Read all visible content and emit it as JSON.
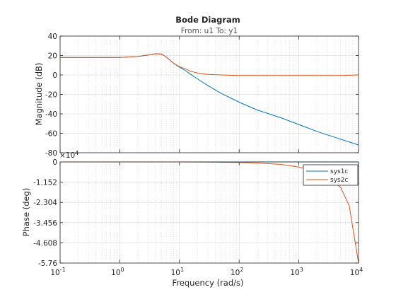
{
  "chart_data": {
    "type": "line",
    "title": "Bode Diagram",
    "subtitle": "From: u1  To: y1",
    "xlabel": "Frequency  (rad/s)",
    "x_scale": "log",
    "xlim": [
      0.1,
      10000
    ],
    "x_ticks": [
      {
        "base": "10",
        "exp": "-1"
      },
      {
        "base": "10",
        "exp": "0"
      },
      {
        "base": "10",
        "exp": "1"
      },
      {
        "base": "10",
        "exp": "2"
      },
      {
        "base": "10",
        "exp": "3"
      },
      {
        "base": "10",
        "exp": "4"
      }
    ],
    "grid": true,
    "panels": [
      {
        "ylabel": "Magnitude (dB)",
        "ylim": [
          -80,
          40
        ],
        "yticks": [
          "40",
          "20",
          "0",
          "-20",
          "-40",
          "-60",
          "-80"
        ],
        "ytick_values": [
          40,
          20,
          0,
          -20,
          -40,
          -60,
          -80
        ],
        "series": [
          {
            "name": "sys1c",
            "color": "#0072bd",
            "x": [
              0.1,
              0.3,
              1,
              2,
              3,
              4,
              5,
              6,
              7,
              8,
              10,
              13,
              15,
              20,
              30,
              50,
              100,
              200,
              500,
              1000,
              2000,
              5000,
              10000
            ],
            "y": [
              18,
              18,
              18,
              19,
              20.5,
              21.8,
              21.5,
              18.5,
              15,
              12,
              8,
              4,
              1,
              -4,
              -11,
              -19,
              -28,
              -36,
              -44,
              -51,
              -58,
              -66,
              -72
            ]
          },
          {
            "name": "sys2c",
            "color": "#d95319",
            "x": [
              0.1,
              0.3,
              1,
              2,
              3,
              4,
              5,
              6,
              7,
              8,
              10,
              13,
              15,
              20,
              30,
              50,
              100,
              200,
              500,
              1000,
              2000,
              5000,
              10000
            ],
            "y": [
              18,
              18,
              18,
              19,
              20.5,
              21.8,
              21.5,
              18.5,
              15,
              12,
              8.5,
              6,
              4,
              2,
              0.5,
              0,
              -0.5,
              -0.5,
              -0.5,
              -0.5,
              -0.5,
              -0.5,
              0
            ]
          }
        ]
      },
      {
        "ylabel": "Phase (deg)",
        "ylim": [
          -5.76,
          0
        ],
        "y_multiplier": "×10",
        "y_multiplier_exp": "4",
        "yticks": [
          "0",
          "-1.152",
          "-2.304",
          "-3.456",
          "-4.608",
          "-5.76"
        ],
        "ytick_values": [
          0,
          -1.152,
          -2.304,
          -3.456,
          -4.608,
          -5.76
        ],
        "series": [
          {
            "name": "sys1c",
            "color": "#0072bd",
            "x": [
              0.1,
              1,
              10,
              100,
              1000,
              10000
            ],
            "y": [
              0,
              0,
              0,
              0,
              0,
              0
            ]
          },
          {
            "name": "sys2c",
            "color": "#d95319",
            "x": [
              0.1,
              1,
              10,
              30,
              100,
              200,
              500,
              1000,
              2000,
              3000,
              5000,
              7000,
              10000
            ],
            "y": [
              0,
              0,
              0,
              -0.01,
              -0.03,
              -0.06,
              -0.14,
              -0.29,
              -0.57,
              -0.86,
              -1.44,
              -2.5,
              -5.76
            ]
          }
        ]
      }
    ],
    "legend": {
      "placement": "top-right",
      "entries": [
        "sys1c",
        "sys2c"
      ]
    }
  }
}
